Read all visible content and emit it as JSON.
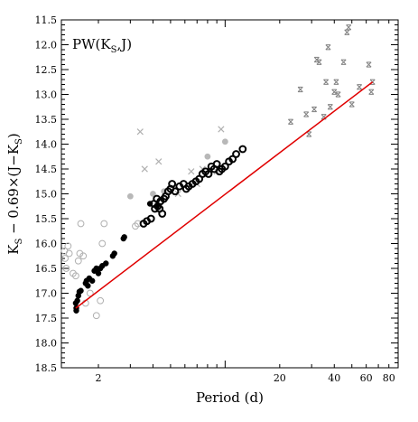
{
  "chart_data": {
    "type": "scatter",
    "title": "",
    "annotation": "PW(K_S,J)",
    "xlabel": "Period (d)",
    "ylabel": "K_S − 0.69×(J−K_S)",
    "x_scale": "log",
    "xlim": [
      1.25,
      90
    ],
    "ylim": [
      18.5,
      11.5
    ],
    "y_inverted": true,
    "grid": false,
    "legend": "none",
    "x_ticks_labeled": [
      "2",
      "20",
      "40",
      "60",
      "80"
    ],
    "x_tick_values": [
      2,
      20,
      40,
      60,
      80
    ],
    "y_ticks": [
      "11.5",
      "12.0",
      "12.5",
      "13.0",
      "13.5",
      "14.0",
      "14.5",
      "15.0",
      "15.5",
      "16.0",
      "16.5",
      "17.0",
      "17.5",
      "18.0",
      "18.5"
    ],
    "colors": {
      "filled_black": "#000000",
      "filled_gray": "#b8b8b8",
      "open_black": "#000000",
      "open_gray": "#b0b0b0",
      "cross_gray": "#b0b0b0",
      "starcross_gray": "#808080",
      "fit_line": "#e00000"
    },
    "series": [
      {
        "marker": "filled-circle-black",
        "points": [
          [
            1.5,
            17.2
          ],
          [
            1.51,
            17.3
          ],
          [
            1.51,
            17.35
          ],
          [
            1.53,
            17.15
          ],
          [
            1.55,
            17.05
          ],
          [
            1.57,
            16.97
          ],
          [
            1.6,
            16.95
          ],
          [
            1.7,
            16.8
          ],
          [
            1.72,
            16.75
          ],
          [
            1.75,
            16.85
          ],
          [
            1.78,
            16.7
          ],
          [
            1.85,
            16.75
          ],
          [
            1.9,
            16.55
          ],
          [
            1.95,
            16.5
          ],
          [
            2.0,
            16.6
          ],
          [
            2.05,
            16.5
          ],
          [
            2.1,
            16.45
          ],
          [
            2.2,
            16.4
          ],
          [
            2.4,
            16.25
          ],
          [
            2.45,
            16.2
          ],
          [
            2.75,
            15.9
          ],
          [
            2.78,
            15.87
          ],
          [
            3.85,
            15.2
          ],
          [
            4.2,
            15.25
          ]
        ]
      },
      {
        "marker": "open-circle-black",
        "points": [
          [
            3.55,
            15.6
          ],
          [
            3.7,
            15.55
          ],
          [
            3.9,
            15.5
          ],
          [
            4.05,
            15.2
          ],
          [
            4.1,
            15.3
          ],
          [
            4.2,
            15.1
          ],
          [
            4.25,
            15.25
          ],
          [
            4.35,
            15.3
          ],
          [
            4.4,
            15.15
          ],
          [
            4.5,
            15.4
          ],
          [
            4.6,
            15.1
          ],
          [
            4.7,
            15.05
          ],
          [
            4.85,
            14.95
          ],
          [
            5.0,
            14.9
          ],
          [
            5.1,
            14.8
          ],
          [
            5.3,
            14.95
          ],
          [
            5.6,
            14.85
          ],
          [
            5.9,
            14.8
          ],
          [
            6.1,
            14.9
          ],
          [
            6.3,
            14.85
          ],
          [
            6.6,
            14.8
          ],
          [
            6.9,
            14.75
          ],
          [
            7.2,
            14.7
          ],
          [
            7.5,
            14.6
          ],
          [
            7.8,
            14.55
          ],
          [
            8.1,
            14.6
          ],
          [
            8.4,
            14.45
          ],
          [
            8.7,
            14.5
          ],
          [
            9.0,
            14.4
          ],
          [
            9.3,
            14.55
          ],
          [
            9.6,
            14.5
          ],
          [
            10.0,
            14.45
          ],
          [
            10.5,
            14.35
          ],
          [
            11.0,
            14.3
          ],
          [
            11.5,
            14.2
          ],
          [
            12.5,
            14.1
          ]
        ]
      },
      {
        "marker": "filled-circle-gray",
        "points": [
          [
            3.0,
            15.05
          ],
          [
            4.0,
            15.0
          ],
          [
            4.6,
            14.95
          ],
          [
            8.0,
            14.25
          ],
          [
            10.0,
            13.95
          ]
        ]
      },
      {
        "marker": "open-circle-gray",
        "points": [
          [
            1.3,
            16.15
          ],
          [
            1.31,
            16.3
          ],
          [
            1.33,
            16.5
          ],
          [
            1.36,
            16.05
          ],
          [
            1.38,
            16.2
          ],
          [
            1.45,
            16.6
          ],
          [
            1.5,
            16.65
          ],
          [
            1.55,
            16.35
          ],
          [
            1.58,
            16.2
          ],
          [
            1.6,
            15.6
          ],
          [
            1.65,
            16.25
          ],
          [
            1.7,
            17.2
          ],
          [
            1.8,
            17.0
          ],
          [
            1.95,
            17.45
          ],
          [
            2.05,
            17.15
          ],
          [
            2.1,
            16.0
          ],
          [
            2.15,
            15.6
          ],
          [
            3.2,
            15.65
          ],
          [
            3.3,
            15.6
          ]
        ]
      },
      {
        "marker": "cross-gray",
        "points": [
          [
            3.4,
            13.75
          ],
          [
            3.6,
            14.5
          ],
          [
            4.3,
            14.35
          ],
          [
            5.5,
            15.0
          ],
          [
            6.5,
            14.55
          ],
          [
            7.0,
            14.8
          ],
          [
            7.5,
            14.5
          ],
          [
            9.0,
            14.55
          ],
          [
            9.5,
            13.7
          ]
        ]
      },
      {
        "marker": "starcross-gray",
        "points": [
          [
            23.0,
            13.55
          ],
          [
            26.0,
            12.9
          ],
          [
            28.0,
            13.4
          ],
          [
            29.0,
            13.8
          ],
          [
            31.0,
            13.3
          ],
          [
            32.0,
            12.3
          ],
          [
            33.0,
            12.35
          ],
          [
            35.0,
            13.45
          ],
          [
            36.0,
            12.75
          ],
          [
            37.0,
            12.05
          ],
          [
            38.0,
            13.25
          ],
          [
            40.0,
            12.95
          ],
          [
            41.0,
            12.75
          ],
          [
            42.0,
            13.0
          ],
          [
            45.0,
            12.35
          ],
          [
            47.0,
            11.75
          ],
          [
            48.0,
            11.65
          ],
          [
            50.0,
            13.2
          ],
          [
            55.0,
            12.85
          ],
          [
            62.0,
            12.4
          ],
          [
            64.0,
            12.95
          ],
          [
            65.0,
            12.75
          ]
        ]
      }
    ],
    "fit_line": {
      "points": [
        [
          1.5,
          17.3
        ],
        [
          65.0,
          12.75
        ]
      ]
    }
  }
}
